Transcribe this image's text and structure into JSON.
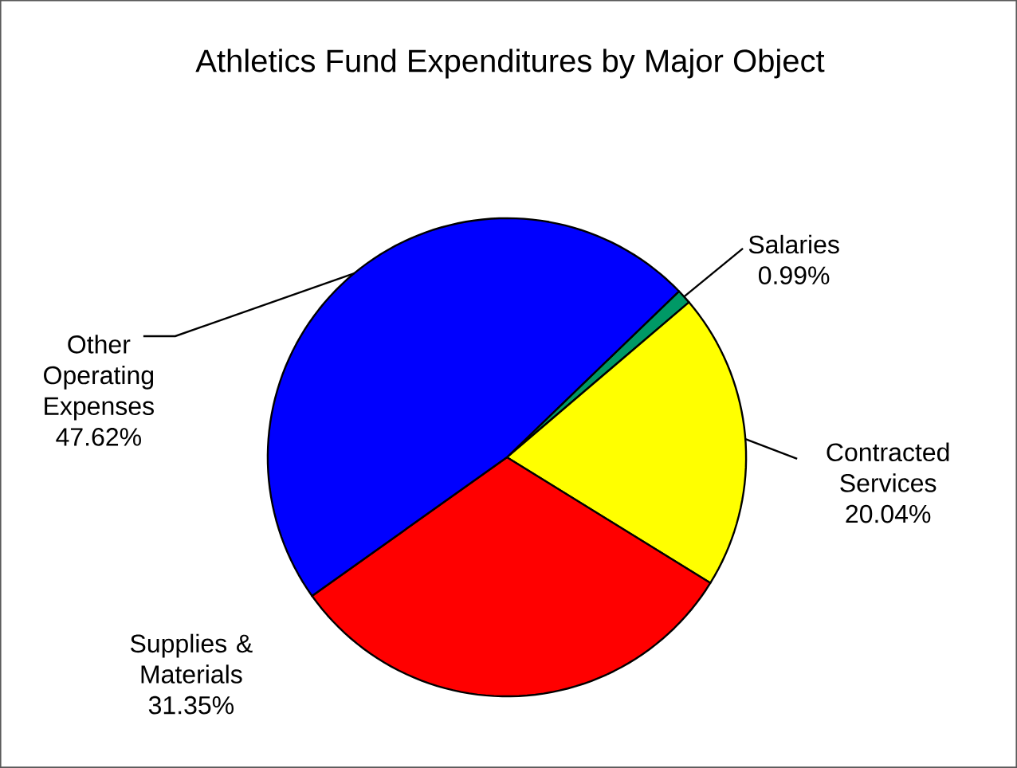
{
  "chart_data": {
    "type": "pie",
    "title": "Athletics Fund Expenditures by Major Object",
    "categories": [
      "Salaries",
      "Contracted Services",
      "Supplies & Materials",
      "Other Operating Expenses"
    ],
    "values": [
      0.99,
      20.04,
      31.35,
      47.62
    ],
    "colors": [
      "#009966",
      "#ffff00",
      "#ff0000",
      "#0000ff"
    ],
    "value_labels": [
      "0.99%",
      "20.04%",
      "31.35%",
      "47.62%"
    ]
  }
}
